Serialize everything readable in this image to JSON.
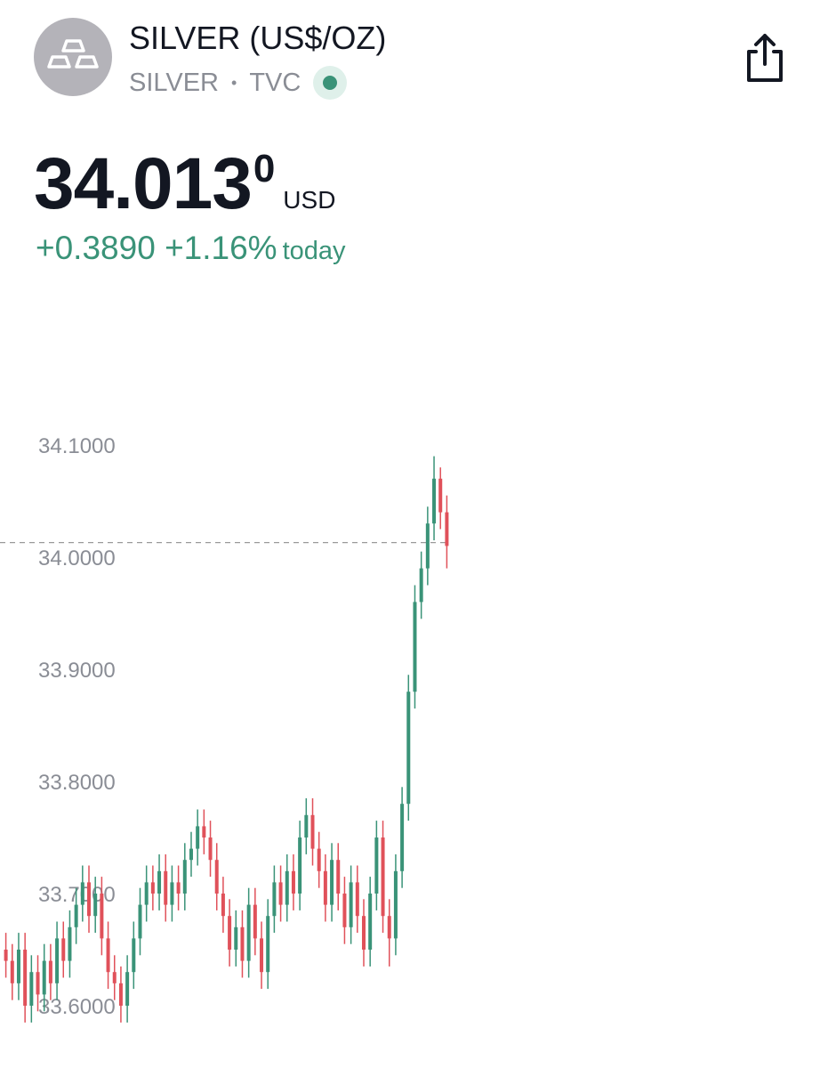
{
  "header": {
    "title": "SILVER (US$/OZ)",
    "symbol": "SILVER",
    "separator": "•",
    "exchange": "TVC"
  },
  "quote": {
    "price": "34.013",
    "price_fraction": "0",
    "currency": "USD",
    "change": "+0.3890",
    "change_percent": "+1.16%",
    "period": "today"
  },
  "chart_data": {
    "type": "candlestick",
    "up_color": "#3a9378",
    "down_color": "#e0515a",
    "ylim": [
      33.55,
      34.12
    ],
    "yticks": [
      {
        "value": 33.6,
        "label": "33.6000"
      },
      {
        "value": 33.7,
        "label": "33.7000"
      },
      {
        "value": 33.8,
        "label": "33.8000"
      },
      {
        "value": 33.9,
        "label": "33.9000"
      },
      {
        "value": 34.0,
        "label": "34.0000"
      },
      {
        "value": 34.1,
        "label": "34.1000"
      }
    ],
    "last_price": 34.013,
    "open": [
      33.65,
      33.64,
      33.62,
      33.65,
      33.6,
      33.63,
      33.61,
      33.64,
      33.62,
      33.66,
      33.64,
      33.67,
      33.69,
      33.71,
      33.68,
      33.7,
      33.66,
      33.63,
      33.62,
      33.6,
      33.63,
      33.66,
      33.69,
      33.71,
      33.7,
      33.72,
      33.69,
      33.71,
      33.7,
      33.73,
      33.74,
      33.76,
      33.75,
      33.73,
      33.7,
      33.68,
      33.65,
      33.67,
      33.64,
      33.69,
      33.66,
      33.63,
      33.68,
      33.71,
      33.69,
      33.72,
      33.7,
      33.75,
      33.77,
      33.74,
      33.72,
      33.69,
      33.73,
      33.7,
      33.67,
      33.71,
      33.68,
      33.65,
      33.7,
      33.75,
      33.68,
      33.66,
      33.72,
      33.78,
      33.88,
      33.96,
      33.99,
      34.03,
      34.07,
      34.04
    ],
    "high": [
      33.665,
      33.655,
      33.665,
      33.665,
      33.645,
      33.645,
      33.655,
      33.655,
      33.675,
      33.675,
      33.685,
      33.705,
      33.725,
      33.725,
      33.715,
      33.715,
      33.675,
      33.645,
      33.635,
      33.645,
      33.675,
      33.705,
      33.725,
      33.725,
      33.735,
      33.735,
      33.725,
      33.725,
      33.745,
      33.755,
      33.775,
      33.775,
      33.765,
      33.745,
      33.715,
      33.695,
      33.685,
      33.685,
      33.705,
      33.705,
      33.675,
      33.695,
      33.725,
      33.725,
      33.735,
      33.735,
      33.765,
      33.785,
      33.785,
      33.755,
      33.735,
      33.745,
      33.745,
      33.715,
      33.725,
      33.725,
      33.695,
      33.715,
      33.765,
      33.765,
      33.695,
      33.735,
      33.795,
      33.895,
      33.975,
      34.005,
      34.045,
      34.09,
      34.08,
      34.055
    ],
    "low": [
      33.625,
      33.605,
      33.605,
      33.585,
      33.585,
      33.595,
      33.595,
      33.605,
      33.605,
      33.625,
      33.625,
      33.655,
      33.675,
      33.665,
      33.665,
      33.645,
      33.615,
      33.605,
      33.585,
      33.585,
      33.615,
      33.645,
      33.675,
      33.685,
      33.685,
      33.675,
      33.675,
      33.685,
      33.685,
      33.715,
      33.725,
      33.735,
      33.715,
      33.685,
      33.665,
      33.635,
      33.635,
      33.625,
      33.625,
      33.645,
      33.615,
      33.615,
      33.665,
      33.675,
      33.675,
      33.685,
      33.685,
      33.735,
      33.725,
      33.705,
      33.675,
      33.675,
      33.685,
      33.655,
      33.655,
      33.665,
      33.635,
      33.635,
      33.685,
      33.665,
      33.635,
      33.645,
      33.705,
      33.765,
      33.865,
      33.945,
      33.975,
      34.015,
      34.025,
      33.99
    ],
    "close": [
      33.64,
      33.62,
      33.65,
      33.6,
      33.63,
      33.61,
      33.64,
      33.62,
      33.66,
      33.64,
      33.67,
      33.69,
      33.71,
      33.68,
      33.7,
      33.66,
      33.63,
      33.62,
      33.6,
      33.63,
      33.66,
      33.69,
      33.71,
      33.7,
      33.72,
      33.69,
      33.71,
      33.7,
      33.73,
      33.74,
      33.76,
      33.75,
      33.73,
      33.7,
      33.68,
      33.65,
      33.67,
      33.64,
      33.69,
      33.66,
      33.63,
      33.68,
      33.71,
      33.69,
      33.72,
      33.7,
      33.75,
      33.77,
      33.74,
      33.72,
      33.69,
      33.73,
      33.7,
      33.67,
      33.71,
      33.68,
      33.65,
      33.7,
      33.75,
      33.68,
      33.66,
      33.72,
      33.78,
      33.88,
      33.96,
      33.99,
      34.03,
      34.07,
      34.04,
      34.01
    ]
  }
}
